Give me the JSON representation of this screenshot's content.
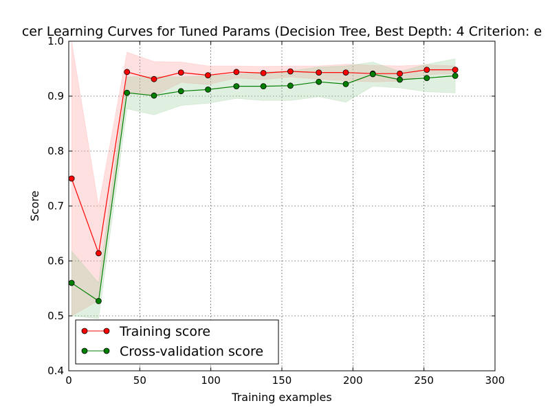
{
  "chart_data": {
    "type": "line",
    "title": "cer Learning Curves for Tuned Params (Decision Tree, Best Depth: 4 Criterion: e",
    "xlabel": "Training examples",
    "ylabel": "Score",
    "xlim": [
      0,
      300
    ],
    "ylim": [
      0.4,
      1.0
    ],
    "xticks": [
      0,
      50,
      100,
      150,
      200,
      250,
      300
    ],
    "yticks": [
      0.4,
      0.5,
      0.6,
      0.7,
      0.8,
      0.9,
      1.0
    ],
    "xtick_labels": [
      "0",
      "50",
      "100",
      "150",
      "200",
      "250",
      "300"
    ],
    "ytick_labels": [
      "0.4",
      "0.5",
      "0.6",
      "0.7",
      "0.8",
      "0.9",
      "1.0"
    ],
    "grid": true,
    "legend_position": "lower-left",
    "x": [
      2,
      21,
      41,
      60,
      79,
      98,
      118,
      137,
      156,
      176,
      195,
      214,
      233,
      252,
      272
    ],
    "series": [
      {
        "name": "Training score",
        "color": "#ff0000",
        "band_color": "#ff9999",
        "values": [
          0.75,
          0.614,
          0.944,
          0.931,
          0.943,
          0.938,
          0.944,
          0.942,
          0.945,
          0.943,
          0.943,
          0.941,
          0.941,
          0.948,
          0.948
        ],
        "band_upper": [
          1.0,
          0.7,
          0.98,
          0.963,
          0.962,
          0.955,
          0.955,
          0.954,
          0.955,
          0.955,
          0.958,
          0.956,
          0.955,
          0.957,
          0.955
        ],
        "band_lower": [
          0.5,
          0.528,
          0.908,
          0.9,
          0.925,
          0.921,
          0.933,
          0.93,
          0.935,
          0.931,
          0.928,
          0.926,
          0.927,
          0.939,
          0.941
        ]
      },
      {
        "name": "Cross-validation score",
        "color": "#008000",
        "band_color": "#99cc99",
        "values": [
          0.56,
          0.527,
          0.906,
          0.901,
          0.909,
          0.912,
          0.918,
          0.918,
          0.919,
          0.926,
          0.922,
          0.94,
          0.93,
          0.933,
          0.937
        ],
        "band_upper": [
          0.618,
          0.56,
          0.935,
          0.936,
          0.935,
          0.937,
          0.94,
          0.944,
          0.946,
          0.953,
          0.955,
          0.962,
          0.945,
          0.958,
          0.968
        ],
        "band_lower": [
          0.5,
          0.495,
          0.877,
          0.866,
          0.883,
          0.887,
          0.896,
          0.892,
          0.892,
          0.899,
          0.889,
          0.918,
          0.915,
          0.908,
          0.906
        ]
      }
    ]
  }
}
